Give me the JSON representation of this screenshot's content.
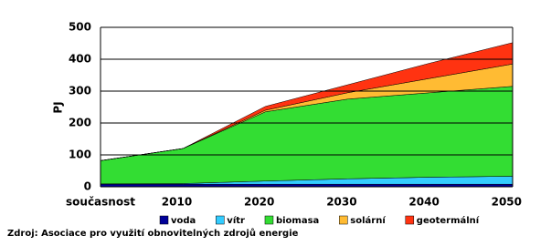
{
  "chart_data": {
    "type": "stacked-area",
    "y_label": "PJ",
    "categories": [
      "současnost",
      "2010",
      "2020",
      "2030",
      "2040",
      "2050"
    ],
    "series": [
      {
        "name": "voda",
        "color": "#000099",
        "values": [
          8,
          8,
          8,
          8,
          8,
          8
        ]
      },
      {
        "name": "vítr",
        "color": "#33ccff",
        "values": [
          1,
          2,
          10,
          17,
          22,
          25
        ]
      },
      {
        "name": "biomasa",
        "color": "#33dd33",
        "values": [
          73,
          110,
          217,
          250,
          265,
          282
        ]
      },
      {
        "name": "solární",
        "color": "#ffbb33",
        "values": [
          0,
          0,
          5,
          20,
          45,
          70
        ]
      },
      {
        "name": "geotermální",
        "color": "#ff3311",
        "values": [
          0,
          0,
          12,
          25,
          48,
          67
        ]
      }
    ],
    "ylim": [
      0,
      500
    ],
    "yticks": [
      0,
      100,
      200,
      300,
      400,
      500
    ],
    "grid": true,
    "source": "Zdroj: Asociace pro využití obnovitelných zdrojů energie"
  }
}
